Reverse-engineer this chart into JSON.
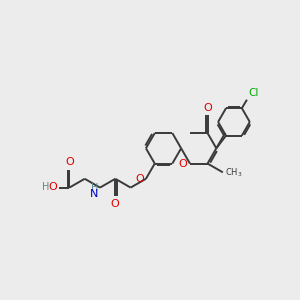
{
  "background_color": "#ececec",
  "bond_color": "#3a3a3a",
  "oxygen_color": "#e00000",
  "nitrogen_color": "#0000cc",
  "chlorine_color": "#00aa00",
  "carbon_color": "#3a3a3a",
  "figsize": [
    3.0,
    3.0
  ],
  "dpi": 100,
  "xlim": [
    -4.2,
    4.5
  ],
  "ylim": [
    -2.8,
    2.8
  ]
}
